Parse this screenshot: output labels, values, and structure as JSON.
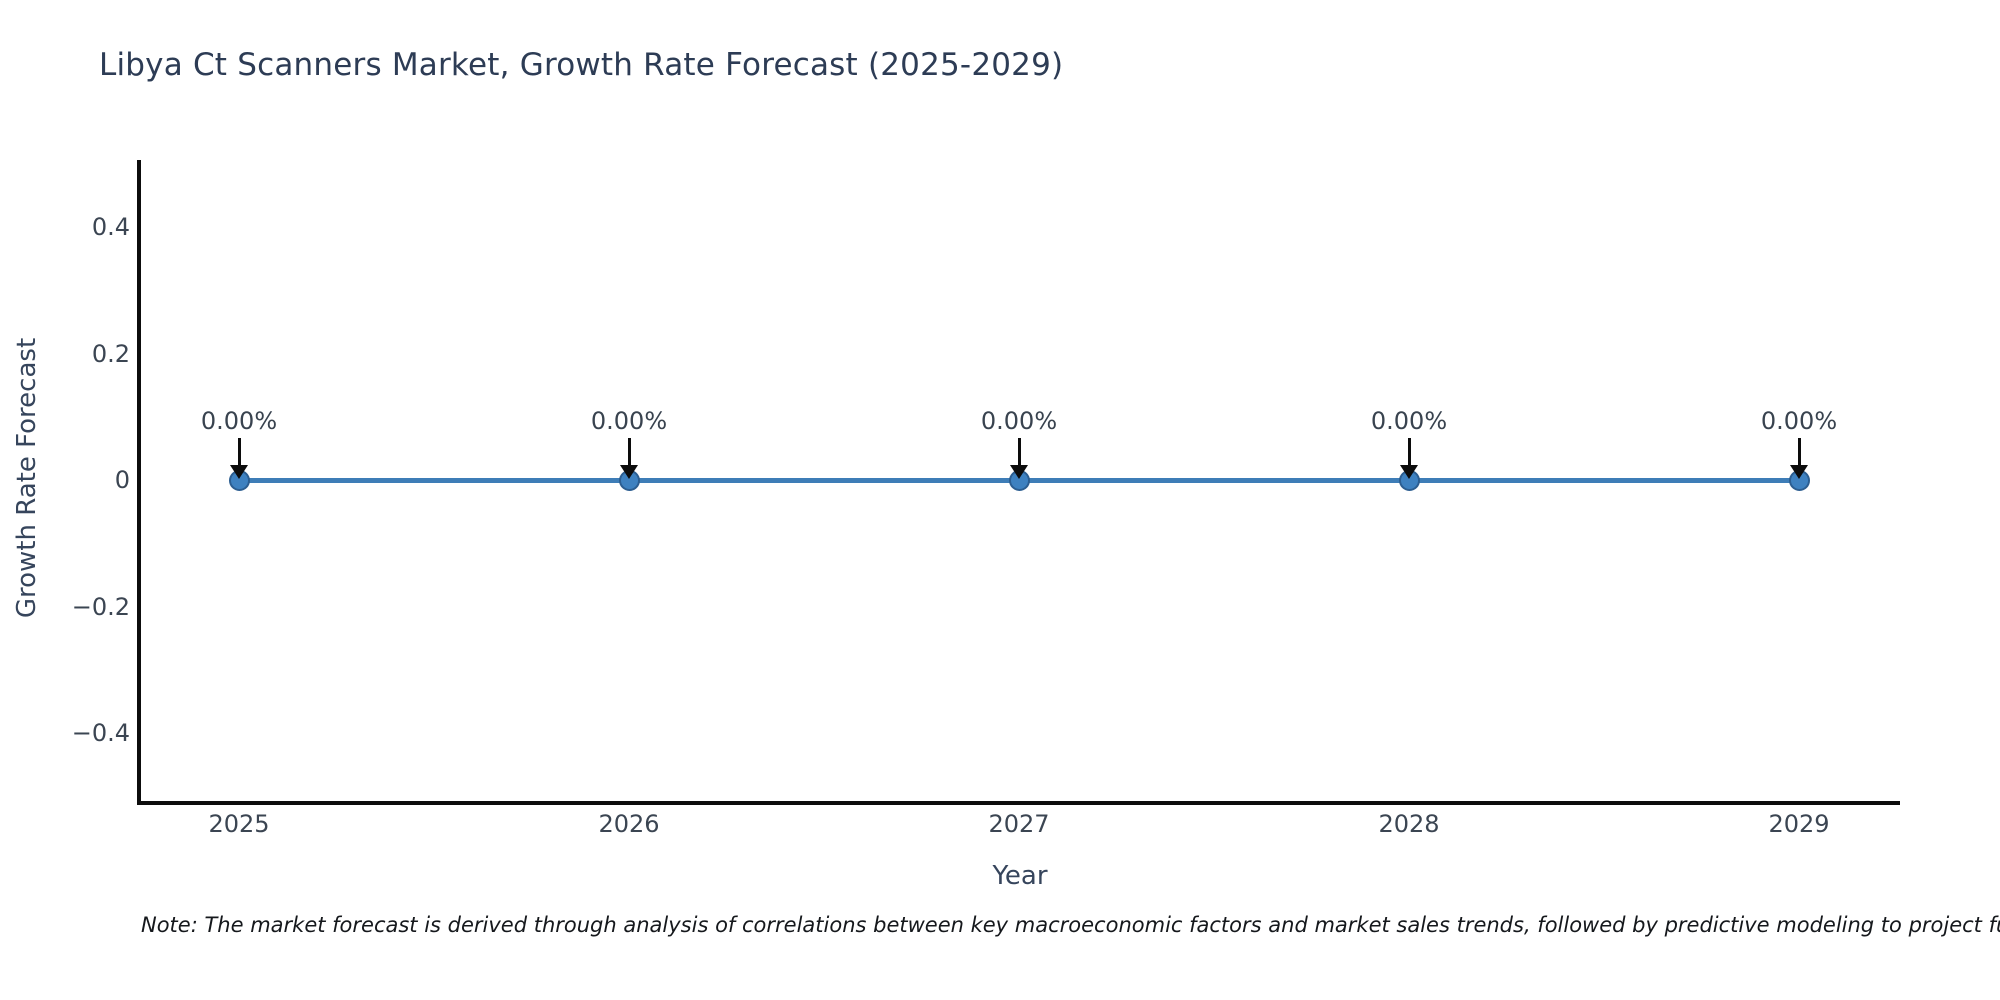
{
  "page": {
    "background": "#ffffff"
  },
  "colors": {
    "accent_line": "#3e7db7",
    "marker_fill": "#3e81c0",
    "marker_edge": "#2c5e91",
    "axis_spine": "#0d0d0d",
    "arrow": "#0c0c0c",
    "title_text": "#2d3c55",
    "axis_label_text": "#36455c",
    "tick_text": "#3b4552",
    "annotation_text": "#39434f",
    "note_text": "#15181c"
  },
  "chart_data": {
    "type": "line",
    "title": "Libya Ct Scanners Market, Growth Rate Forecast (2025-2029)",
    "xlabel": "Year",
    "ylabel": "Growth Rate Forecast",
    "x": [
      2025,
      2026,
      2027,
      2028,
      2029
    ],
    "series": [
      {
        "name": "Growth Rate Forecast",
        "values": [
          0,
          0,
          0,
          0,
          0
        ]
      }
    ],
    "point_labels": [
      "0.00%",
      "0.00%",
      "0.00%",
      "0.00%",
      "0.00%"
    ],
    "xtick_labels": [
      "2025",
      "2026",
      "2027",
      "2028",
      "2029"
    ],
    "ytick_labels": [
      "0.4",
      "0.2",
      "0",
      "−0.2",
      "−0.4"
    ],
    "ytick_values": [
      0.4,
      0.2,
      0,
      -0.2,
      -0.4
    ],
    "ylim": [
      -0.51,
      0.51
    ],
    "xlim": [
      2024.74,
      2029.26
    ],
    "grid": false,
    "legend": null,
    "annotation_style": "down-arrow-to-point",
    "note": "Note: The market forecast is derived through analysis of correlations between key macroeconomic factors and market sales trends, followed by predictive modeling to project future sales."
  }
}
